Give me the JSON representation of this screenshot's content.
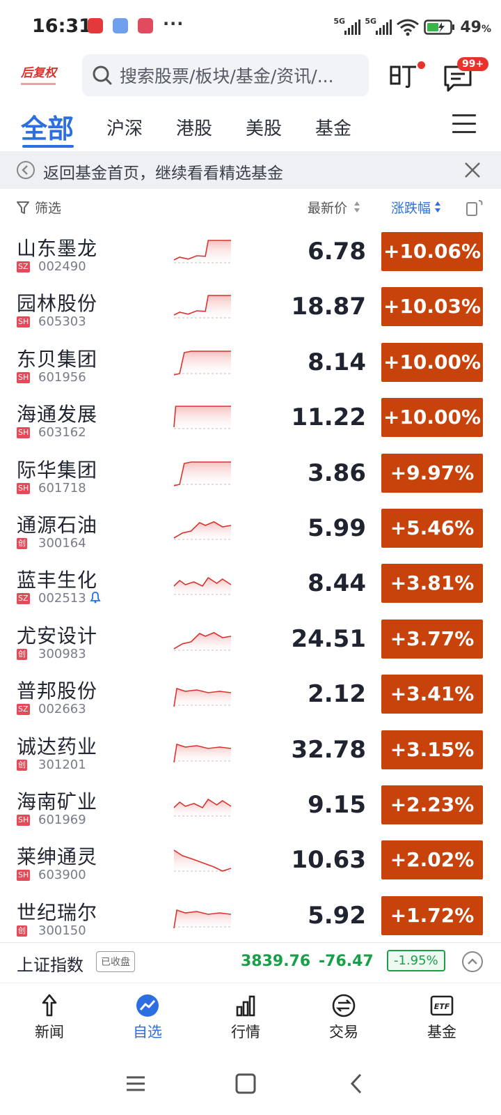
{
  "status_bar": {
    "time": "16:31",
    "network": [
      "5G",
      "5G"
    ],
    "battery_percent": "49",
    "battery_unit": "%",
    "overflow": "···"
  },
  "header": {
    "logo_text": "后复权",
    "search_placeholder": "搜索股票/板块/基金/资讯/...",
    "message_badge": "99+",
    "colors": {
      "accent": "#2d6fe0",
      "badge": "#e8332c"
    }
  },
  "tabs": [
    {
      "label": "全部",
      "active": true
    },
    {
      "label": "沪深",
      "active": false
    },
    {
      "label": "港股",
      "active": false
    },
    {
      "label": "美股",
      "active": false
    },
    {
      "label": "基金",
      "active": false
    }
  ],
  "banner": {
    "text": "返回基金首页，继续看看精选基金"
  },
  "columns": {
    "filter": "筛选",
    "price": "最新价",
    "change": "涨跌幅"
  },
  "stocks": [
    {
      "name": "山东墨龙",
      "market": "SZ",
      "code": "002490",
      "price": "6.78",
      "change": "+10.06%",
      "spark": "limitup_late"
    },
    {
      "name": "园林股份",
      "market": "SH",
      "code": "605303",
      "price": "18.87",
      "change": "+10.03%",
      "spark": "limitup_late"
    },
    {
      "name": "东贝集团",
      "market": "SH",
      "code": "601956",
      "price": "8.14",
      "change": "+10.00%",
      "spark": "limitup_early"
    },
    {
      "name": "海通发展",
      "market": "SH",
      "code": "603162",
      "price": "11.22",
      "change": "+10.00%",
      "spark": "limitup_open"
    },
    {
      "name": "际华集团",
      "market": "SH",
      "code": "601718",
      "price": "3.86",
      "change": "+9.97%",
      "spark": "limitup_early"
    },
    {
      "name": "通源石油",
      "market": "创",
      "code": "300164",
      "price": "5.99",
      "change": "+5.46%",
      "spark": "rising"
    },
    {
      "name": "蓝丰生化",
      "market": "SZ",
      "code": "002513",
      "price": "8.44",
      "change": "+3.81%",
      "spark": "volatile",
      "alert": true
    },
    {
      "name": "尤安设计",
      "market": "创",
      "code": "300983",
      "price": "24.51",
      "change": "+3.77%",
      "spark": "rising"
    },
    {
      "name": "普邦股份",
      "market": "SZ",
      "code": "002663",
      "price": "2.12",
      "change": "+3.41%",
      "spark": "spike_flat"
    },
    {
      "name": "诚达药业",
      "market": "创",
      "code": "301201",
      "price": "32.78",
      "change": "+3.15%",
      "spark": "spike_flat"
    },
    {
      "name": "海南矿业",
      "market": "SH",
      "code": "601969",
      "price": "9.15",
      "change": "+2.23%",
      "spark": "volatile"
    },
    {
      "name": "莱绅通灵",
      "market": "SH",
      "code": "603900",
      "price": "10.63",
      "change": "+2.02%",
      "spark": "falling"
    },
    {
      "name": "世纪瑞尔",
      "market": "创",
      "code": "300150",
      "price": "5.92",
      "change": "+1.72%",
      "spark": "spike_flat"
    }
  ],
  "index_bar": {
    "name": "上证指数",
    "state": "已收盘",
    "value": "3839.76",
    "delta": "-76.47",
    "percent": "-1.95%"
  },
  "bottom_nav": [
    {
      "label": "新闻",
      "icon": "news-icon",
      "active": false
    },
    {
      "label": "自选",
      "icon": "watchlist-icon",
      "active": true
    },
    {
      "label": "行情",
      "icon": "market-icon",
      "active": false
    },
    {
      "label": "交易",
      "icon": "trade-icon",
      "active": false
    },
    {
      "label": "基金",
      "icon": "etf-icon",
      "active": false
    }
  ],
  "system_nav": [
    "menu",
    "home",
    "back"
  ]
}
